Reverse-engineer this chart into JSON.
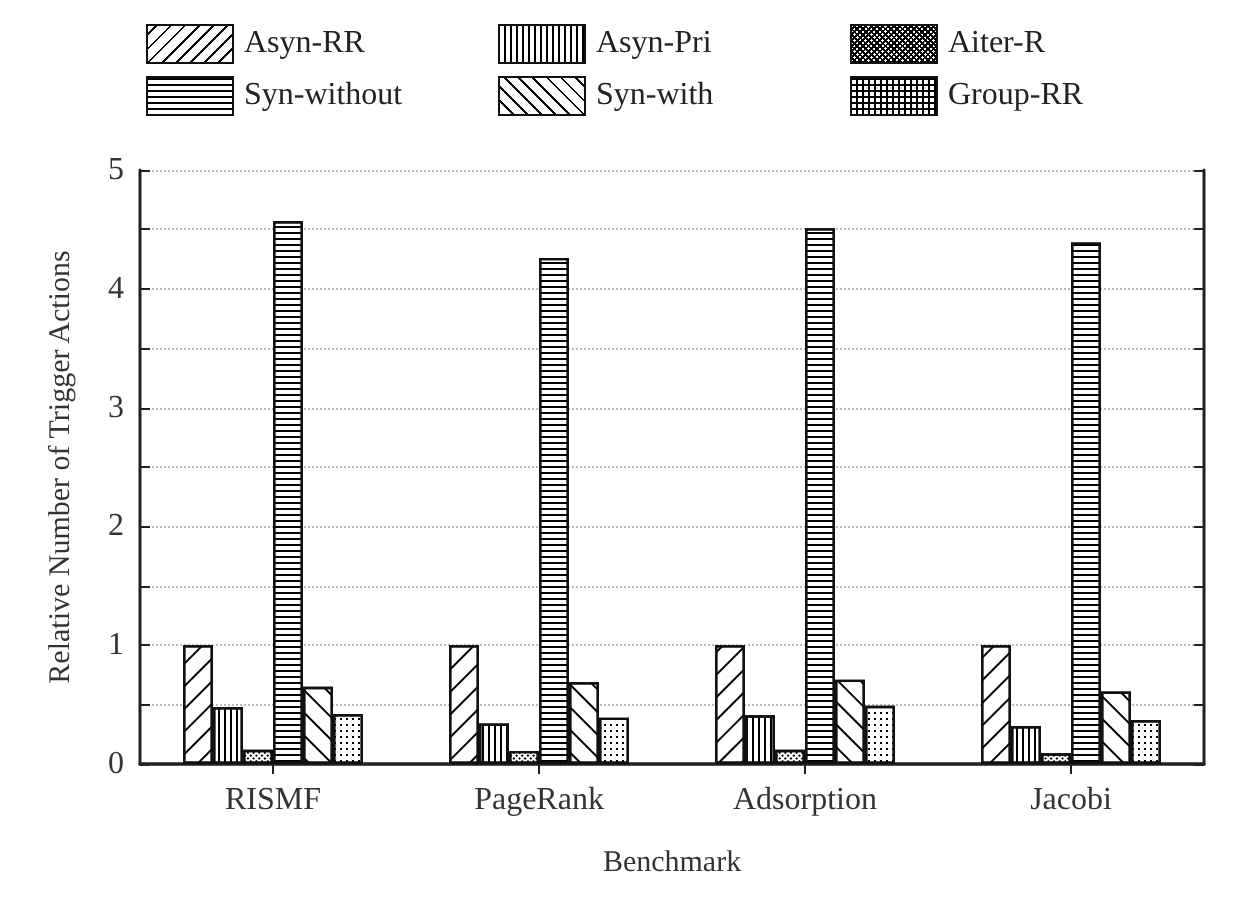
{
  "chart_data": {
    "type": "bar",
    "xlabel": "Benchmark",
    "ylabel": "Relative Number of Trigger Actions",
    "categories": [
      "RISMF",
      "PageRank",
      "Adsorption",
      "Jacobi"
    ],
    "series": [
      {
        "name": "Asyn-RR",
        "color": "#ffffff",
        "values": [
          1.0,
          1.0,
          1.0,
          1.0
        ]
      },
      {
        "name": "Asyn-Pri",
        "color": "#ffffff",
        "values": [
          0.48,
          0.34,
          0.41,
          0.32
        ]
      },
      {
        "name": "Aiter-R",
        "color": "#ffffff",
        "values": [
          0.12,
          0.11,
          0.12,
          0.09
        ]
      },
      {
        "name": "Syn-without",
        "color": "#ffffff",
        "values": [
          4.57,
          4.26,
          4.51,
          4.39
        ]
      },
      {
        "name": "Syn-with",
        "color": "#ffffff",
        "values": [
          0.65,
          0.69,
          0.71,
          0.61
        ]
      },
      {
        "name": "Group-RR",
        "color": "#ffffff",
        "values": [
          0.42,
          0.39,
          0.49,
          0.37
        ]
      }
    ],
    "ylim": [
      0,
      5
    ],
    "yticks": [
      0,
      {
        "value": 0.5,
        "label": null
      },
      1,
      {
        "value": 1.5,
        "label": null
      },
      2,
      {
        "value": 2.5,
        "label": null
      },
      3,
      {
        "value": 3.5,
        "label": null
      },
      4,
      {
        "value": 4.5,
        "label": null
      },
      5
    ],
    "grid": "y",
    "legend": "top"
  }
}
